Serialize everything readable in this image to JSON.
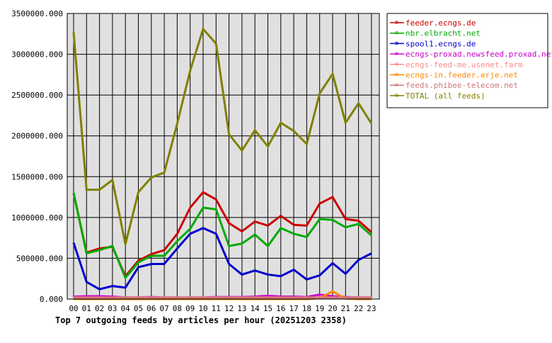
{
  "chart_data": {
    "type": "line",
    "title": "Top 7 outgoing feeds by articles per hour (20251203 2358)",
    "xlabel": "",
    "ylabel": "",
    "ylim": [
      0,
      3500000
    ],
    "grid": true,
    "legend_placement": "right",
    "categories": [
      "00",
      "01",
      "02",
      "03",
      "04",
      "05",
      "06",
      "07",
      "08",
      "09",
      "10",
      "11",
      "12",
      "13",
      "14",
      "15",
      "16",
      "17",
      "18",
      "19",
      "20",
      "21",
      "22",
      "23"
    ],
    "yticks": [
      "0.000",
      "500000.000",
      "1000000.000",
      "1500000.000",
      "2000000.000",
      "2500000.000",
      "3000000.000",
      "3500000.000"
    ],
    "series": [
      {
        "name": "feeder.ecngs.de",
        "color": "#cc0000",
        "values": [
          1300000,
          570000,
          620000,
          640000,
          280000,
          470000,
          550000,
          600000,
          800000,
          1120000,
          1310000,
          1220000,
          930000,
          830000,
          950000,
          900000,
          1020000,
          910000,
          900000,
          1170000,
          1250000,
          980000,
          960000,
          820000
        ]
      },
      {
        "name": "nbr.elbracht.net",
        "color": "#00aa00",
        "values": [
          1300000,
          560000,
          600000,
          650000,
          260000,
          450000,
          530000,
          530000,
          710000,
          860000,
          1120000,
          1100000,
          650000,
          680000,
          790000,
          650000,
          870000,
          800000,
          760000,
          980000,
          970000,
          880000,
          920000,
          780000
        ]
      },
      {
        "name": "spool1.ecngs.de",
        "color": "#0000cc",
        "values": [
          690000,
          210000,
          120000,
          160000,
          140000,
          390000,
          430000,
          430000,
          620000,
          800000,
          870000,
          800000,
          430000,
          300000,
          350000,
          300000,
          280000,
          360000,
          240000,
          290000,
          440000,
          310000,
          480000,
          560000
        ]
      },
      {
        "name": "ecngs-proxad.newsfeed.proxad.net",
        "color": "#cc00cc",
        "values": [
          30000,
          35000,
          35000,
          30000,
          20000,
          20000,
          25000,
          20000,
          20000,
          20000,
          20000,
          25000,
          25000,
          25000,
          30000,
          40000,
          30000,
          30000,
          25000,
          55000,
          35000,
          25000,
          20000,
          20000
        ]
      },
      {
        "name": "ecngs-feed-me.usenet.farm",
        "color": "#ff8888",
        "values": [
          20000,
          20000,
          20000,
          20000,
          20000,
          20000,
          20000,
          20000,
          20000,
          20000,
          20000,
          20000,
          20000,
          20000,
          20000,
          20000,
          20000,
          20000,
          20000,
          20000,
          20000,
          20000,
          20000,
          20000
        ]
      },
      {
        "name": "ecngs-in.feeder.erje.net",
        "color": "#ff8800",
        "values": [
          0,
          0,
          0,
          0,
          0,
          0,
          0,
          0,
          0,
          0,
          0,
          0,
          0,
          0,
          0,
          0,
          0,
          0,
          0,
          10000,
          95000,
          5000,
          0,
          0
        ]
      },
      {
        "name": "feeds.phibee-telecom.net",
        "color": "#cc7777",
        "values": [
          15000,
          15000,
          15000,
          15000,
          15000,
          15000,
          15000,
          15000,
          15000,
          15000,
          15000,
          15000,
          15000,
          15000,
          15000,
          15000,
          15000,
          15000,
          15000,
          15000,
          15000,
          15000,
          15000,
          15000
        ]
      },
      {
        "name": "TOTAL (all feeds)",
        "color": "#808000",
        "values": [
          3270000,
          1340000,
          1340000,
          1460000,
          670000,
          1310000,
          1490000,
          1550000,
          2150000,
          2800000,
          3310000,
          3130000,
          2020000,
          1820000,
          2070000,
          1870000,
          2160000,
          2060000,
          1900000,
          2520000,
          2760000,
          2160000,
          2400000,
          2150000
        ]
      }
    ]
  }
}
